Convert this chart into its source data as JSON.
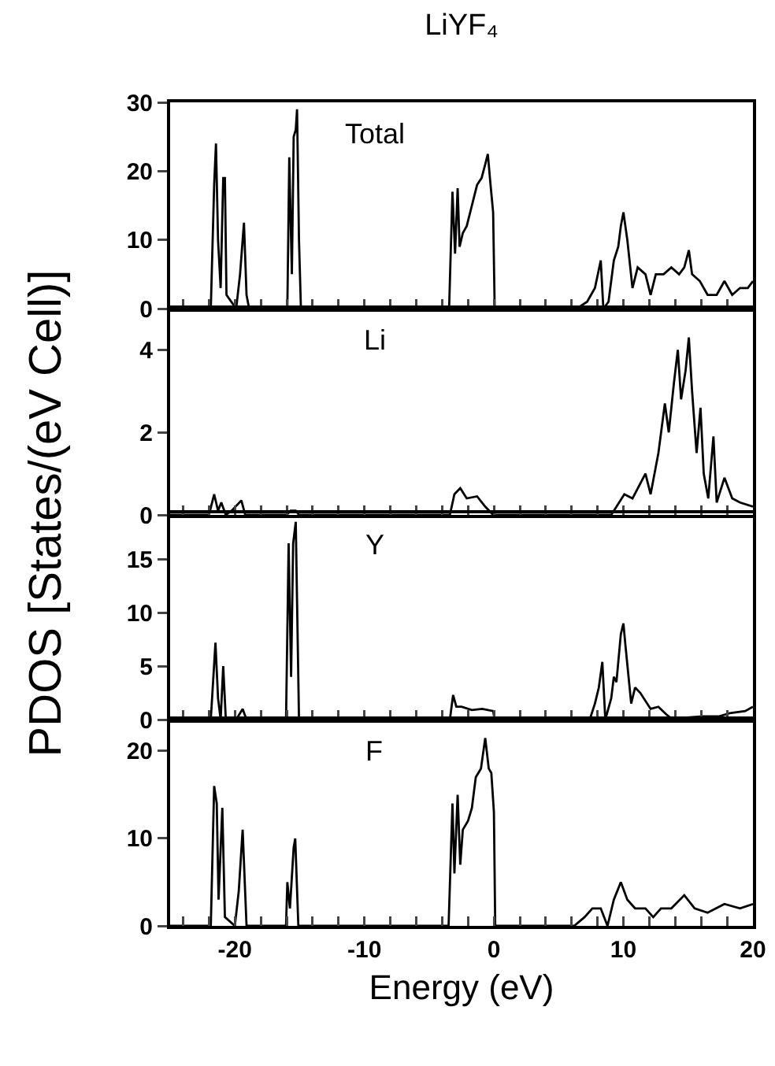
{
  "chart_data": [
    {
      "type": "line",
      "title": "LiYF₄",
      "ylabel": "PDOS [States/(eV Cell)]",
      "annotations": [
        "Total"
      ],
      "tick_labels": "y",
      "xlim": [
        -25,
        20
      ],
      "ylim": [
        0,
        30
      ],
      "yticks": [
        0,
        10,
        20,
        30
      ],
      "xticks": [
        {
          "value": -24,
          "label": null
        },
        {
          "value": -22,
          "label": null
        },
        {
          "value": -20,
          "label": null
        },
        {
          "value": -18,
          "label": null
        },
        {
          "value": -16,
          "label": null
        },
        {
          "value": -14,
          "label": null
        },
        {
          "value": -12,
          "label": null
        },
        {
          "value": -10,
          "label": null
        },
        {
          "value": -8,
          "label": null
        },
        {
          "value": -6,
          "label": null
        },
        {
          "value": -4,
          "label": null
        },
        {
          "value": -2,
          "label": null
        },
        {
          "value": 0,
          "label": null
        },
        {
          "value": 2,
          "label": null
        },
        {
          "value": 4,
          "label": null
        },
        {
          "value": 6,
          "label": null
        },
        {
          "value": 8,
          "label": null
        },
        {
          "value": 10,
          "label": null
        },
        {
          "value": 12,
          "label": null
        },
        {
          "value": 14,
          "label": null
        },
        {
          "value": 16,
          "label": null
        },
        {
          "value": 18,
          "label": null
        },
        {
          "value": 20,
          "label": null
        }
      ],
      "x": [
        -25,
        -21.86,
        -21.6,
        -21.46,
        -21.3,
        -21.1,
        -20.9,
        -20.77,
        -20.65,
        -19.9,
        -19.6,
        -19.3,
        -19.1,
        -18.9,
        -18.5,
        -16.2,
        -15.95,
        -15.8,
        -15.6,
        -15.46,
        -15.3,
        -15.2,
        -15.05,
        -14.9,
        -14.5,
        -10,
        -3.6,
        -3.46,
        -3.2,
        -3.0,
        -2.8,
        -2.65,
        -2.4,
        -2.1,
        -1.7,
        -1.3,
        -0.95,
        -0.67,
        -0.47,
        -0.26,
        -0.06,
        0.06,
        6.4,
        7.2,
        7.8,
        8.25,
        8.45,
        8.85,
        9.26,
        9.6,
        9.8,
        10.0,
        10.3,
        10.7,
        11.1,
        11.7,
        12.1,
        12.5,
        13.1,
        13.7,
        14.3,
        14.7,
        15.05,
        15.3,
        15.9,
        16.5,
        17.2,
        17.8,
        18.4,
        19.0,
        19.6,
        20
      ],
      "series": [
        {
          "color": "#000000",
          "values": [
            0,
            0,
            18,
            24,
            10,
            3,
            19,
            19,
            2,
            0,
            5,
            12.5,
            2,
            0,
            0.3,
            0.3,
            0,
            22,
            5,
            25,
            26,
            29,
            10,
            0,
            0.2,
            0.2,
            0,
            0,
            17,
            8,
            17.5,
            9,
            11,
            12,
            15,
            18,
            19,
            21,
            22.5,
            18,
            14,
            0,
            0,
            1,
            3,
            7,
            0,
            1,
            7,
            9,
            12,
            14,
            10,
            3,
            6,
            5,
            2,
            5,
            5,
            6,
            5,
            6,
            8.5,
            5,
            4,
            2,
            2,
            4,
            2,
            3,
            3,
            4
          ]
        }
      ]
    },
    {
      "type": "line",
      "annotations": [
        "Li"
      ],
      "tick_labels": "y",
      "xlim": [
        -25,
        20
      ],
      "ylim": [
        0,
        5
      ],
      "yticks": [
        0,
        2,
        4
      ],
      "xticks": [
        {
          "value": -24,
          "label": null
        },
        {
          "value": -22,
          "label": null
        },
        {
          "value": -20,
          "label": null
        },
        {
          "value": -18,
          "label": null
        },
        {
          "value": -16,
          "label": null
        },
        {
          "value": -14,
          "label": null
        },
        {
          "value": -12,
          "label": null
        },
        {
          "value": -10,
          "label": null
        },
        {
          "value": -8,
          "label": null
        },
        {
          "value": -6,
          "label": null
        },
        {
          "value": -4,
          "label": null
        },
        {
          "value": -2,
          "label": null
        },
        {
          "value": 0,
          "label": null
        },
        {
          "value": 2,
          "label": null
        },
        {
          "value": 4,
          "label": null
        },
        {
          "value": 6,
          "label": null
        },
        {
          "value": 8,
          "label": null
        },
        {
          "value": 10,
          "label": null
        },
        {
          "value": 12,
          "label": null
        },
        {
          "value": 14,
          "label": null
        },
        {
          "value": 16,
          "label": null
        },
        {
          "value": 18,
          "label": null
        },
        {
          "value": 20,
          "label": null
        }
      ],
      "x": [
        -25,
        -22,
        -21.6,
        -21.3,
        -21.05,
        -20.7,
        -20.25,
        -19.5,
        -19.2,
        -16,
        -15.7,
        -15.3,
        -15.05,
        -3.4,
        -3.05,
        -2.6,
        -2.1,
        -1.3,
        -0.67,
        -0.06,
        9.06,
        10.07,
        10.7,
        11.7,
        12.1,
        12.7,
        13.2,
        13.5,
        13.9,
        14.2,
        14.45,
        14.8,
        15.05,
        15.3,
        15.65,
        15.95,
        16.2,
        16.55,
        16.95,
        17.2,
        17.8,
        18.4,
        19.0,
        20
      ],
      "series": [
        {
          "color": "#000000",
          "values": [
            0,
            0,
            0.5,
            0.1,
            0.3,
            0,
            0.1,
            0.35,
            0,
            0,
            0.1,
            0.1,
            0,
            0,
            0.5,
            0.65,
            0.4,
            0.45,
            0.2,
            0,
            0,
            0.5,
            0.4,
            1.0,
            0.5,
            1.5,
            2.7,
            2.0,
            3.2,
            4.0,
            2.8,
            3.5,
            4.3,
            3.0,
            1.5,
            2.6,
            1.0,
            0.4,
            1.9,
            0.3,
            0.9,
            0.4,
            0.3,
            0.2
          ]
        }
      ]
    },
    {
      "type": "line",
      "annotations": [
        "Y"
      ],
      "tick_labels": "y",
      "xlim": [
        -25,
        20
      ],
      "ylim": [
        0,
        19.3
      ],
      "yticks": [
        0,
        5,
        10,
        15
      ],
      "xticks": [
        {
          "value": -24,
          "label": null
        },
        {
          "value": -22,
          "label": null
        },
        {
          "value": -20,
          "label": null
        },
        {
          "value": -18,
          "label": null
        },
        {
          "value": -16,
          "label": null
        },
        {
          "value": -14,
          "label": null
        },
        {
          "value": -12,
          "label": null
        },
        {
          "value": -10,
          "label": null
        },
        {
          "value": -8,
          "label": null
        },
        {
          "value": -6,
          "label": null
        },
        {
          "value": -4,
          "label": null
        },
        {
          "value": -2,
          "label": null
        },
        {
          "value": 0,
          "label": null
        },
        {
          "value": 2,
          "label": null
        },
        {
          "value": 4,
          "label": null
        },
        {
          "value": 6,
          "label": null
        },
        {
          "value": 8,
          "label": null
        },
        {
          "value": 10,
          "label": null
        },
        {
          "value": 12,
          "label": null
        },
        {
          "value": 14,
          "label": null
        },
        {
          "value": 16,
          "label": null
        },
        {
          "value": 18,
          "label": null
        },
        {
          "value": 20,
          "label": null
        }
      ],
      "x": [
        -25,
        -21.86,
        -21.5,
        -21.3,
        -21.1,
        -20.9,
        -20.7,
        -19.9,
        -19.4,
        -19.1,
        -16.05,
        -15.85,
        -15.66,
        -15.5,
        -15.3,
        -15.05,
        -3.4,
        -3.15,
        -2.9,
        -2.5,
        -1.7,
        -0.9,
        -0.06,
        0.06,
        7.4,
        7.8,
        8.1,
        8.37,
        8.6,
        9.06,
        9.26,
        9.46,
        9.8,
        10.0,
        10.15,
        10.6,
        10.9,
        11.3,
        12.1,
        12.7,
        13.3,
        13.7,
        14.9,
        16.1,
        17.4,
        18.2,
        19.4,
        20
      ],
      "series": [
        {
          "color": "#000000",
          "values": [
            0,
            0,
            7.2,
            2,
            0,
            5,
            0,
            0,
            1,
            0,
            0,
            16.5,
            4,
            16.5,
            18.5,
            0,
            0,
            2.3,
            1.2,
            1.2,
            0.9,
            1,
            0.8,
            0,
            0,
            1.5,
            3,
            5.4,
            0,
            2,
            4,
            3.5,
            8,
            9,
            7,
            1.5,
            3,
            2.5,
            1,
            1.2,
            0.5,
            0.1,
            0.2,
            0.3,
            0.3,
            0.6,
            0.8,
            1.2
          ]
        }
      ]
    },
    {
      "type": "line",
      "xlabel": "Energy (eV)",
      "annotations": [
        "F"
      ],
      "xlim": [
        -25,
        20
      ],
      "ylim": [
        0,
        23.6
      ],
      "yticks": [
        0,
        10,
        20
      ],
      "xticks": [
        {
          "value": -24,
          "label": null
        },
        {
          "value": -22,
          "label": null
        },
        {
          "value": -20,
          "label": "-20"
        },
        {
          "value": -18,
          "label": null
        },
        {
          "value": -16,
          "label": null
        },
        {
          "value": -14,
          "label": null
        },
        {
          "value": -12,
          "label": null
        },
        {
          "value": -10,
          "label": "-10"
        },
        {
          "value": -8,
          "label": null
        },
        {
          "value": -6,
          "label": null
        },
        {
          "value": -4,
          "label": null
        },
        {
          "value": -2,
          "label": null
        },
        0,
        {
          "value": 2,
          "label": null
        },
        {
          "value": 4,
          "label": null
        },
        {
          "value": 6,
          "label": null
        },
        {
          "value": 8,
          "label": null
        },
        10,
        {
          "value": 12,
          "label": null
        },
        {
          "value": 14,
          "label": null
        },
        {
          "value": 16,
          "label": null
        },
        {
          "value": 18,
          "label": null
        },
        20
      ],
      "x": [
        -25,
        -21.86,
        -21.6,
        -21.4,
        -21.26,
        -20.97,
        -20.77,
        -20,
        -19.7,
        -19.4,
        -19.1,
        -16.05,
        -15.95,
        -15.75,
        -15.46,
        -15.34,
        -15.1,
        -3.5,
        -3.2,
        -3.05,
        -2.8,
        -2.6,
        -2.4,
        -2.0,
        -1.7,
        -1.4,
        -1.0,
        -0.67,
        -0.4,
        -0.2,
        0.0,
        0.1,
        6.2,
        7.0,
        7.6,
        8.25,
        8.77,
        9.26,
        9.8,
        10.3,
        10.9,
        11.7,
        12.3,
        12.9,
        13.7,
        14.7,
        15.5,
        16.5,
        17.8,
        19.0,
        20
      ],
      "series": [
        {
          "color": "#000000",
          "values": [
            0,
            0,
            16,
            14,
            3,
            13.5,
            1,
            0,
            4,
            11,
            0,
            0,
            5,
            2,
            9,
            10,
            0,
            0,
            14,
            6,
            15,
            7,
            11,
            12,
            13.5,
            17,
            18,
            21.5,
            18,
            17.5,
            13,
            0,
            0,
            1,
            2,
            2,
            0,
            3,
            5,
            3,
            2,
            2,
            1,
            2,
            2,
            3.5,
            2,
            1.5,
            2.5,
            2,
            2.5
          ]
        }
      ]
    }
  ]
}
